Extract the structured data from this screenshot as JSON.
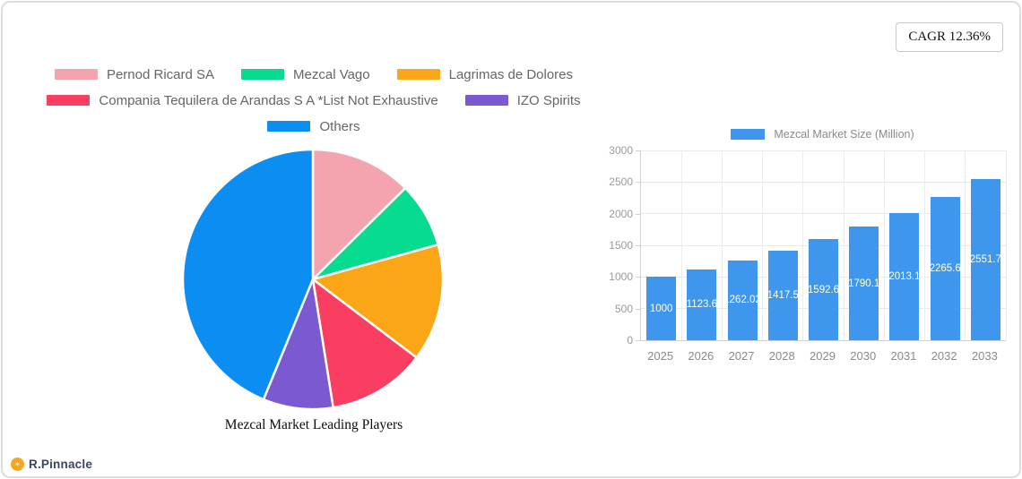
{
  "header": {
    "cagr_label": "CAGR 12.36%"
  },
  "branding": {
    "logo_text": "R.Pinnacle",
    "logo_icon": "orange-circle-monogram",
    "logo_color": "#f5a721"
  },
  "colors": {
    "bar_fill": "#3f97ed",
    "grid": "#e9e9e9",
    "axis_text": "#9a9a9a",
    "legend_text": "#666666",
    "card_border": "#dcdcdc"
  },
  "chart_data": [
    {
      "type": "pie",
      "title": "Mezcal Market Leading Players",
      "legend_position": "top",
      "direction": "clockwise",
      "start_angle_deg": 0,
      "slices": [
        {
          "label": "Pernod Ricard SA",
          "value": 12.6,
          "color": "#f4a4af"
        },
        {
          "label": "Mezcal Vago",
          "value": 8.1,
          "color": "#06db90"
        },
        {
          "label": "Lagrimas de Dolores",
          "value": 14.6,
          "color": "#faa617"
        },
        {
          "label": "Compania Tequilera de Arandas S A *List Not Exhaustive",
          "value": 12.2,
          "color": "#f93e61"
        },
        {
          "label": "IZO Spirits",
          "value": 8.7,
          "color": "#7a59d1"
        },
        {
          "label": "Others",
          "value": 43.8,
          "color": "#0b8df1"
        }
      ],
      "legend_rows": [
        [
          0,
          1,
          2
        ],
        [
          3,
          4
        ],
        [
          5
        ]
      ]
    },
    {
      "type": "bar",
      "legend_label": "Mezcal Market Size (Million)",
      "categories": [
        "2025",
        "2026",
        "2027",
        "2028",
        "2029",
        "2030",
        "2031",
        "2032",
        "2033"
      ],
      "values": [
        1000,
        1123.6,
        1262.02,
        1417.5,
        1592.6,
        1790.1,
        2013.1,
        2265.6,
        2551.7
      ],
      "bar_labels": [
        "1000",
        "1123.6",
        "1262.02",
        "1417.5",
        "1592.6",
        "1790.1",
        "2013.1",
        "2265.6",
        "2551.7"
      ],
      "bar_color": "#3f97ed",
      "ylim": [
        0,
        3000
      ],
      "yticks": [
        0,
        500,
        1000,
        1500,
        2000,
        2500,
        3000
      ],
      "grid": true,
      "legend_position": "top"
    }
  ]
}
